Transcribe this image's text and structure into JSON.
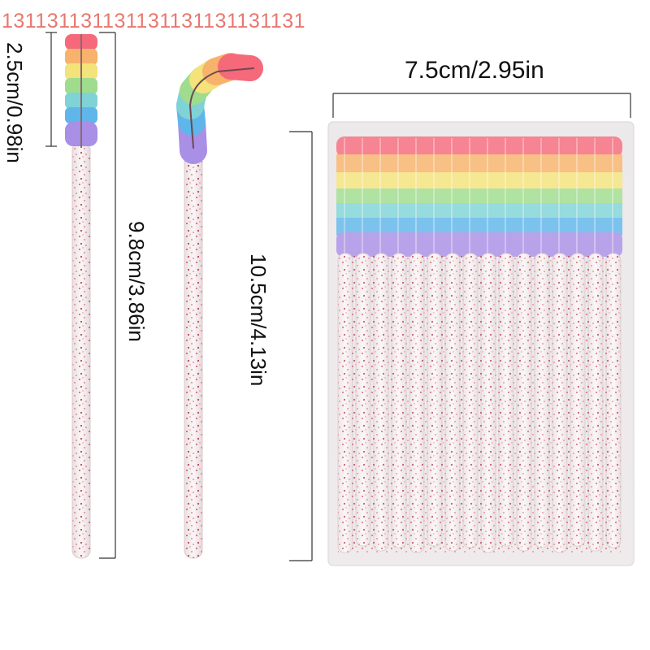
{
  "watermark": "131131131131131131131131131",
  "dimensions": {
    "brush_head_length": "2.5cm/0.98in",
    "wand_length": "9.8cm/3.86in",
    "pack_width": "7.5cm/2.95in",
    "pack_height": "10.5cm/4.13in"
  },
  "colors": {
    "bristle_bands": [
      "#f5697a",
      "#f7b36b",
      "#f4e27a",
      "#9fdc8e",
      "#7fd3d6",
      "#5fb6ea",
      "#a98fe6"
    ],
    "glitter": "#c33a4a",
    "handle": "#f3e9ea",
    "package": "#e8e4e6"
  }
}
